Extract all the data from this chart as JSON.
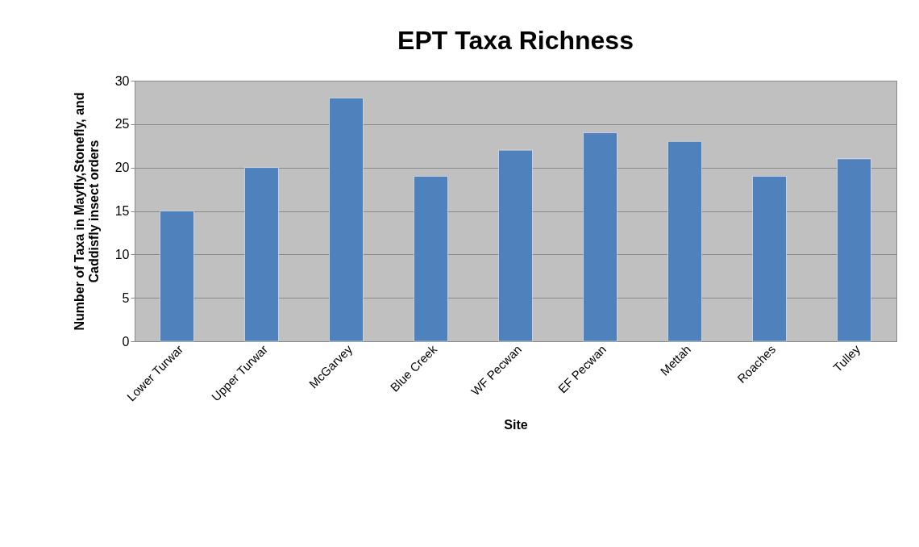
{
  "chart_data": {
    "type": "bar",
    "title": "EPT Taxa Richness",
    "xlabel": "Site",
    "ylabel": "Number of Taxa in Mayfly,Stonefly, and Caddisfly insect orders",
    "categories": [
      "Lower Turwar",
      "Upper Turwar",
      "McGarvey",
      "Blue Creek",
      "WF Pecwan",
      "EF Pecwan",
      "Mettah",
      "Roaches",
      "Tulley"
    ],
    "values": [
      15,
      20,
      28,
      19,
      22,
      24,
      23,
      19,
      21
    ],
    "color": "#4f81bd",
    "ylim": [
      0,
      30
    ],
    "yticks": [
      0,
      5,
      10,
      15,
      20,
      25,
      30
    ],
    "grid": "y"
  }
}
